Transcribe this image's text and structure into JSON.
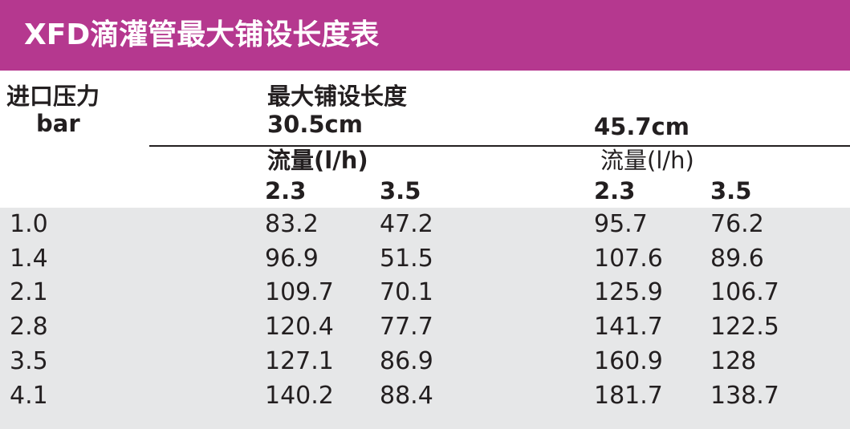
{
  "header": {
    "title": "XFD滴灌管最大铺设长度表"
  },
  "table": {
    "columns": {
      "pressure": "进口压力",
      "pressure_unit": "bar",
      "max_length": "最大铺设长度",
      "length_1": "30.5cm",
      "length_2": "45.7cm",
      "flow_1": "流量(l/h)",
      "flow_2": "流量(l/h)",
      "flows": [
        "2.3",
        "3.5",
        "2.3",
        "3.5"
      ]
    },
    "rows": [
      [
        "1.0",
        "83.2",
        "47.2",
        "95.7",
        "76.2"
      ],
      [
        "1.4",
        "96.9",
        "51.5",
        "107.6",
        "89.6"
      ],
      [
        "2.1",
        "109.7",
        "70.1",
        "125.9",
        "106.7"
      ],
      [
        "2.8",
        "120.4",
        "77.7",
        "141.7",
        "122.5"
      ],
      [
        "3.5",
        "127.1",
        "86.9",
        "160.9",
        "128"
      ],
      [
        "4.1",
        "140.2",
        "88.4",
        "181.7",
        "138.7"
      ]
    ]
  }
}
